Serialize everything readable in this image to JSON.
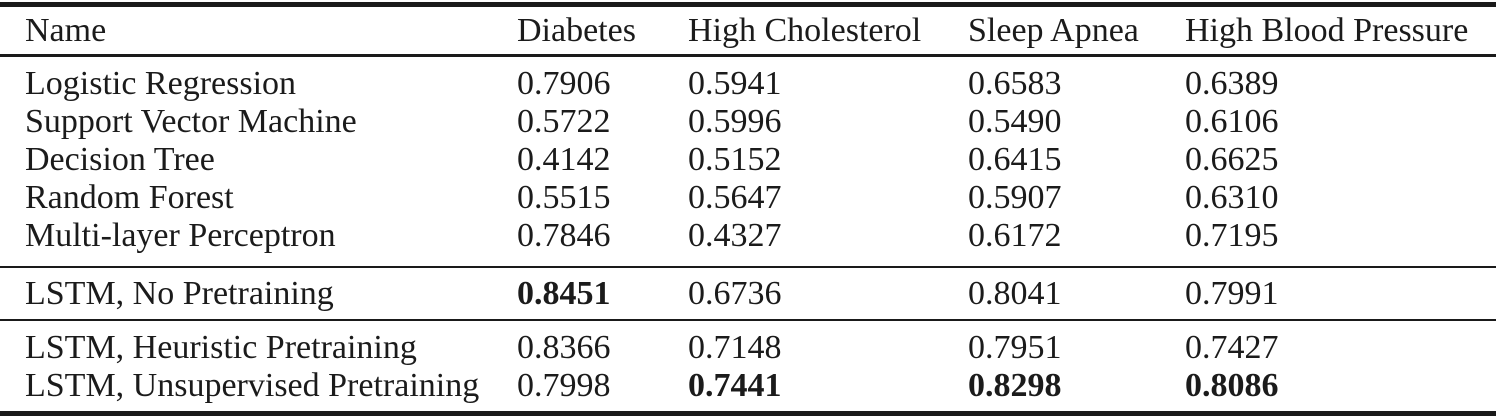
{
  "page": {
    "background_color": "#ffffff",
    "text_color": "#1b1b1b",
    "rule_color": "#1a1a1a"
  },
  "table": {
    "header": {
      "name": "Name",
      "diabetes": "Diabetes",
      "high_cholesterol": "High Cholesterol",
      "sleep_apnea": "Sleep Apnea",
      "high_blood_pressure": "High Blood Pressure"
    },
    "sections": [
      {
        "rows": [
          {
            "name": "Logistic Regression",
            "values": [
              "0.7906",
              "0.5941",
              "0.6583",
              "0.6389"
            ],
            "bold_columns": []
          },
          {
            "name": "Support Vector Machine",
            "values": [
              "0.5722",
              "0.5996",
              "0.5490",
              "0.6106"
            ],
            "bold_columns": []
          },
          {
            "name": "Decision Tree",
            "values": [
              "0.4142",
              "0.5152",
              "0.6415",
              "0.6625"
            ],
            "bold_columns": []
          },
          {
            "name": "Random Forest",
            "values": [
              "0.5515",
              "0.5647",
              "0.5907",
              "0.6310"
            ],
            "bold_columns": []
          },
          {
            "name": "Multi-layer Perceptron",
            "values": [
              "0.7846",
              "0.4327",
              "0.6172",
              "0.7195"
            ],
            "bold_columns": []
          }
        ]
      },
      {
        "rows": [
          {
            "name": "LSTM, No Pretraining",
            "values": [
              "0.8451",
              "0.6736",
              "0.8041",
              "0.7991"
            ],
            "bold_columns": [
              0
            ]
          }
        ]
      },
      {
        "rows": [
          {
            "name": "LSTM, Heuristic Pretraining",
            "values": [
              "0.8366",
              "0.7148",
              "0.7951",
              "0.7427"
            ],
            "bold_columns": []
          },
          {
            "name": "LSTM, Unsupervised Pretraining",
            "values": [
              "0.7998",
              "0.7441",
              "0.8298",
              "0.8086"
            ],
            "bold_columns": [
              1,
              2,
              3
            ]
          }
        ]
      }
    ]
  }
}
